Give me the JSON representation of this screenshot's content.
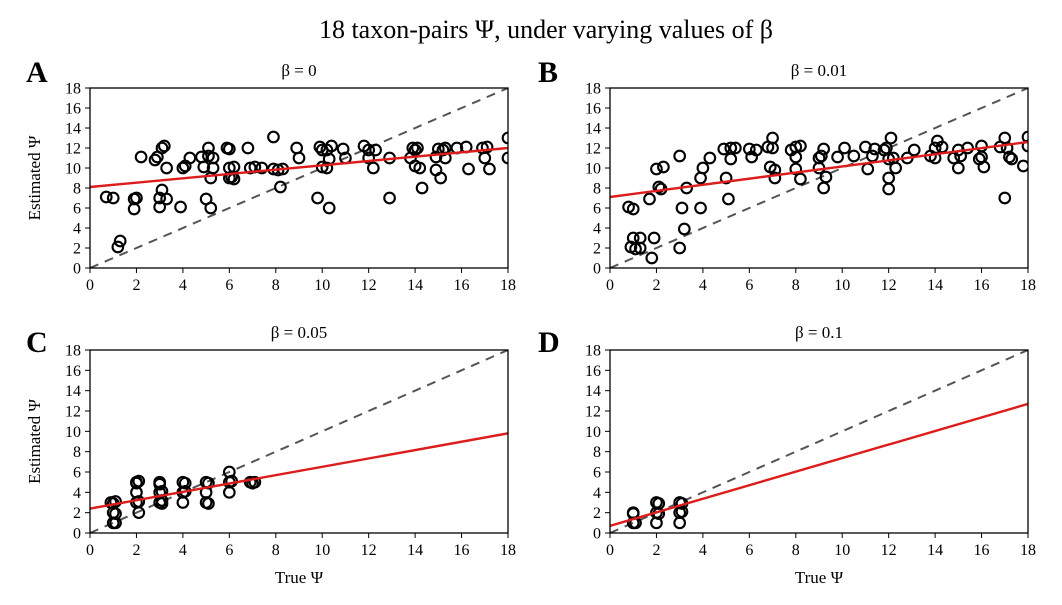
{
  "figure_title": "18 taxon-pairs Ψ, under varying values of β",
  "colors": {
    "fit": "#dd1c1c",
    "identity": "#555555",
    "points": "#000000",
    "frame": "#000000"
  },
  "chart_data": [
    {
      "panel": "A",
      "type": "scatter",
      "title": "β = 0",
      "xlabel": "",
      "ylabel": "Estimated Ψ",
      "xlim": [
        0,
        18
      ],
      "ylim": [
        0,
        18
      ],
      "xticks": [
        0,
        2,
        4,
        6,
        8,
        10,
        12,
        14,
        16,
        18
      ],
      "yticks": [
        0,
        2,
        4,
        6,
        8,
        10,
        12,
        14,
        16,
        18
      ],
      "identity_line": true,
      "fit_line": {
        "x0": 0,
        "y0": 8.1,
        "x1": 18,
        "y1": 12.0
      },
      "points": [
        [
          0.7,
          7.1
        ],
        [
          1.0,
          7.0
        ],
        [
          1.2,
          2.1
        ],
        [
          1.3,
          2.7
        ],
        [
          1.9,
          5.9
        ],
        [
          1.9,
          6.9
        ],
        [
          2.0,
          7.0
        ],
        [
          2.2,
          11.1
        ],
        [
          2.8,
          10.8
        ],
        [
          2.9,
          11.1
        ],
        [
          3.0,
          6.1
        ],
        [
          3.0,
          7.0
        ],
        [
          3.1,
          7.8
        ],
        [
          3.1,
          12.0
        ],
        [
          3.2,
          12.2
        ],
        [
          3.3,
          10.0
        ],
        [
          3.3,
          6.9
        ],
        [
          3.9,
          6.1
        ],
        [
          4.0,
          10.0
        ],
        [
          4.1,
          10.2
        ],
        [
          4.3,
          11.0
        ],
        [
          4.8,
          11.1
        ],
        [
          4.9,
          10.1
        ],
        [
          5.0,
          6.9
        ],
        [
          5.1,
          12.0
        ],
        [
          5.1,
          11.2
        ],
        [
          5.2,
          6.0
        ],
        [
          5.2,
          9.0
        ],
        [
          5.3,
          10.0
        ],
        [
          5.3,
          11.0
        ],
        [
          5.9,
          12.0
        ],
        [
          6.0,
          11.9
        ],
        [
          6.0,
          10.0
        ],
        [
          6.0,
          9.0
        ],
        [
          6.1,
          9.1
        ],
        [
          6.2,
          10.1
        ],
        [
          6.2,
          8.9
        ],
        [
          6.8,
          12.0
        ],
        [
          6.9,
          10.0
        ],
        [
          7.1,
          10.1
        ],
        [
          7.4,
          10.0
        ],
        [
          7.9,
          13.1
        ],
        [
          7.9,
          9.9
        ],
        [
          8.1,
          9.8
        ],
        [
          8.2,
          8.1
        ],
        [
          8.3,
          9.9
        ],
        [
          8.9,
          12.0
        ],
        [
          9.0,
          11.0
        ],
        [
          9.8,
          7.0
        ],
        [
          9.9,
          12.1
        ],
        [
          10.0,
          11.8
        ],
        [
          10.0,
          10.1
        ],
        [
          10.2,
          11.8
        ],
        [
          10.2,
          10.0
        ],
        [
          10.3,
          10.9
        ],
        [
          10.3,
          6.0
        ],
        [
          10.4,
          12.2
        ],
        [
          10.9,
          11.9
        ],
        [
          11.0,
          11.0
        ],
        [
          11.8,
          12.2
        ],
        [
          12.0,
          11.8
        ],
        [
          12.0,
          11.0
        ],
        [
          12.2,
          10.0
        ],
        [
          12.3,
          11.8
        ],
        [
          12.9,
          11.0
        ],
        [
          12.9,
          7.0
        ],
        [
          13.8,
          11.0
        ],
        [
          13.9,
          12.0
        ],
        [
          14.0,
          10.2
        ],
        [
          14.0,
          11.8
        ],
        [
          14.1,
          12.0
        ],
        [
          14.2,
          10.0
        ],
        [
          14.3,
          8.0
        ],
        [
          14.9,
          11.1
        ],
        [
          14.9,
          9.8
        ],
        [
          15.0,
          11.9
        ],
        [
          15.1,
          9.0
        ],
        [
          15.2,
          11.8
        ],
        [
          15.3,
          12.0
        ],
        [
          15.3,
          11.0
        ],
        [
          15.8,
          12.0
        ],
        [
          16.2,
          12.1
        ],
        [
          16.3,
          9.9
        ],
        [
          16.9,
          12.0
        ],
        [
          17.0,
          11.0
        ],
        [
          17.1,
          12.1
        ],
        [
          17.2,
          9.9
        ],
        [
          18.0,
          13.0
        ],
        [
          18.0,
          11.0
        ]
      ]
    },
    {
      "panel": "B",
      "type": "scatter",
      "title": "β = 0.01",
      "xlabel": "",
      "ylabel": "",
      "xlim": [
        0,
        18
      ],
      "ylim": [
        0,
        18
      ],
      "xticks": [
        0,
        2,
        4,
        6,
        8,
        10,
        12,
        14,
        16,
        18
      ],
      "yticks": [
        0,
        2,
        4,
        6,
        8,
        10,
        12,
        14,
        16,
        18
      ],
      "identity_line": true,
      "fit_line": {
        "x0": 0,
        "y0": 7.1,
        "x1": 18,
        "y1": 12.6
      },
      "points": [
        [
          0.8,
          6.1
        ],
        [
          0.9,
          2.1
        ],
        [
          1.0,
          5.9
        ],
        [
          1.0,
          3.0
        ],
        [
          1.1,
          1.9
        ],
        [
          1.3,
          3.0
        ],
        [
          1.3,
          2.0
        ],
        [
          1.7,
          6.9
        ],
        [
          1.8,
          1.0
        ],
        [
          1.9,
          3.0
        ],
        [
          2.0,
          9.9
        ],
        [
          2.1,
          8.1
        ],
        [
          2.2,
          7.9
        ],
        [
          2.3,
          10.1
        ],
        [
          3.0,
          11.2
        ],
        [
          3.0,
          2.0
        ],
        [
          3.1,
          6.0
        ],
        [
          3.2,
          3.9
        ],
        [
          3.3,
          8.0
        ],
        [
          3.9,
          6.0
        ],
        [
          3.9,
          9.0
        ],
        [
          4.0,
          10.0
        ],
        [
          4.3,
          11.0
        ],
        [
          4.9,
          11.9
        ],
        [
          5.0,
          9.0
        ],
        [
          5.1,
          6.9
        ],
        [
          5.2,
          12.0
        ],
        [
          5.2,
          10.9
        ],
        [
          5.4,
          12.0
        ],
        [
          6.0,
          11.9
        ],
        [
          6.1,
          11.1
        ],
        [
          6.3,
          11.8
        ],
        [
          6.8,
          12.1
        ],
        [
          6.9,
          10.1
        ],
        [
          7.0,
          13.0
        ],
        [
          7.0,
          12.0
        ],
        [
          7.1,
          9.0
        ],
        [
          7.1,
          9.8
        ],
        [
          7.8,
          11.8
        ],
        [
          8.0,
          12.1
        ],
        [
          8.0,
          11.1
        ],
        [
          8.0,
          9.9
        ],
        [
          8.2,
          8.9
        ],
        [
          8.2,
          12.2
        ],
        [
          9.0,
          11.0
        ],
        [
          9.0,
          10.0
        ],
        [
          9.1,
          11.2
        ],
        [
          9.2,
          11.9
        ],
        [
          9.2,
          8.0
        ],
        [
          9.3,
          9.1
        ],
        [
          9.8,
          11.1
        ],
        [
          10.1,
          12.0
        ],
        [
          10.5,
          11.2
        ],
        [
          11.0,
          12.1
        ],
        [
          11.1,
          9.9
        ],
        [
          11.3,
          11.2
        ],
        [
          11.4,
          11.9
        ],
        [
          11.8,
          11.8
        ],
        [
          11.9,
          12.0
        ],
        [
          12.0,
          10.9
        ],
        [
          12.0,
          7.9
        ],
        [
          12.0,
          9.0
        ],
        [
          12.1,
          13.0
        ],
        [
          12.2,
          11.0
        ],
        [
          12.3,
          10.0
        ],
        [
          12.8,
          11.0
        ],
        [
          13.1,
          11.8
        ],
        [
          13.8,
          11.2
        ],
        [
          14.0,
          12.0
        ],
        [
          14.0,
          11.0
        ],
        [
          14.1,
          12.7
        ],
        [
          14.3,
          12.1
        ],
        [
          14.8,
          11.0
        ],
        [
          15.0,
          10.0
        ],
        [
          15.0,
          11.8
        ],
        [
          15.1,
          11.2
        ],
        [
          15.4,
          12.0
        ],
        [
          15.9,
          10.9
        ],
        [
          16.0,
          12.2
        ],
        [
          16.0,
          11.1
        ],
        [
          16.1,
          10.1
        ],
        [
          16.8,
          12.1
        ],
        [
          17.0,
          13.0
        ],
        [
          17.0,
          7.0
        ],
        [
          17.1,
          12.0
        ],
        [
          17.2,
          11.1
        ],
        [
          17.3,
          10.9
        ],
        [
          17.8,
          10.2
        ],
        [
          18.0,
          12.2
        ],
        [
          18.0,
          13.1
        ]
      ]
    },
    {
      "panel": "C",
      "type": "scatter",
      "title": "β = 0.05",
      "xlabel": "True Ψ",
      "ylabel": "Estimated Ψ",
      "xlim": [
        0,
        18
      ],
      "ylim": [
        0,
        18
      ],
      "xticks": [
        0,
        2,
        4,
        6,
        8,
        10,
        12,
        14,
        16,
        18
      ],
      "yticks": [
        0,
        2,
        4,
        6,
        8,
        10,
        12,
        14,
        16,
        18
      ],
      "identity_line": true,
      "fit_line": {
        "x0": 0,
        "y0": 2.4,
        "x1": 18,
        "y1": 9.8
      },
      "points": [
        [
          0.9,
          3.0
        ],
        [
          1.0,
          1.0
        ],
        [
          1.0,
          2.0
        ],
        [
          1.0,
          2.9
        ],
        [
          1.1,
          3.1
        ],
        [
          1.1,
          1.9
        ],
        [
          1.1,
          1.0
        ],
        [
          2.0,
          5.0
        ],
        [
          2.0,
          4.0
        ],
        [
          2.0,
          3.0
        ],
        [
          2.0,
          4.9
        ],
        [
          2.1,
          3.1
        ],
        [
          2.1,
          2.0
        ],
        [
          2.1,
          5.1
        ],
        [
          3.0,
          5.0
        ],
        [
          3.0,
          4.0
        ],
        [
          3.0,
          3.0
        ],
        [
          3.0,
          4.8
        ],
        [
          3.1,
          4.1
        ],
        [
          3.1,
          3.2
        ],
        [
          3.1,
          2.9
        ],
        [
          4.0,
          5.0
        ],
        [
          4.0,
          4.0
        ],
        [
          4.0,
          3.0
        ],
        [
          4.1,
          4.9
        ],
        [
          4.1,
          4.1
        ],
        [
          5.0,
          5.0
        ],
        [
          5.0,
          4.0
        ],
        [
          5.0,
          3.0
        ],
        [
          5.1,
          4.9
        ],
        [
          5.1,
          2.9
        ],
        [
          6.0,
          6.0
        ],
        [
          6.0,
          5.0
        ],
        [
          6.0,
          4.0
        ],
        [
          6.1,
          5.1
        ],
        [
          6.9,
          5.0
        ],
        [
          7.0,
          4.9
        ],
        [
          7.1,
          5.0
        ]
      ]
    },
    {
      "panel": "D",
      "type": "scatter",
      "title": "β = 0.1",
      "xlabel": "True Ψ",
      "ylabel": "",
      "xlim": [
        0,
        18
      ],
      "ylim": [
        0,
        18
      ],
      "xticks": [
        0,
        2,
        4,
        6,
        8,
        10,
        12,
        14,
        16,
        18
      ],
      "yticks": [
        0,
        2,
        4,
        6,
        8,
        10,
        12,
        14,
        16,
        18
      ],
      "identity_line": true,
      "fit_line": {
        "x0": 0,
        "y0": 0.7,
        "x1": 18,
        "y1": 12.7
      },
      "points": [
        [
          1.0,
          2.0
        ],
        [
          1.0,
          1.0
        ],
        [
          1.0,
          1.9
        ],
        [
          1.1,
          1.0
        ],
        [
          2.0,
          3.0
        ],
        [
          2.0,
          2.0
        ],
        [
          2.0,
          1.0
        ],
        [
          2.1,
          2.9
        ],
        [
          2.1,
          1.9
        ],
        [
          3.0,
          3.0
        ],
        [
          3.0,
          2.0
        ],
        [
          3.0,
          1.0
        ],
        [
          3.1,
          2.9
        ],
        [
          3.1,
          2.1
        ]
      ]
    }
  ]
}
